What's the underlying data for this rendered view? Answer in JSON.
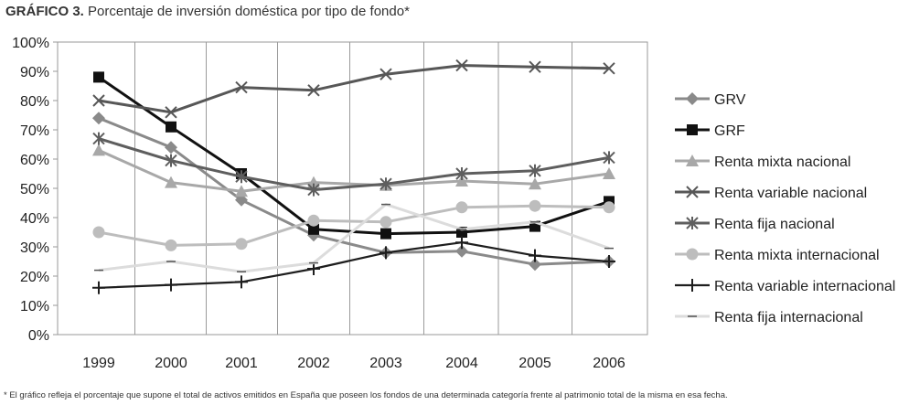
{
  "title_label": "GRÁFICO 3.",
  "title_text": "Porcentaje de inversión doméstica por tipo de fondo*",
  "footnote": "* El gráfico refleja el porcentaje que supone el total de activos emitidos en España que poseen los fondos de una determinada categoría frente al patrimonio total de la misma en esa fecha.",
  "chart_data": {
    "type": "line",
    "x": [
      "1999",
      "2000",
      "2001",
      "2002",
      "2003",
      "2004",
      "2005",
      "2006"
    ],
    "ylim": [
      0,
      100
    ],
    "yticks": [
      "0%",
      "10%",
      "20%",
      "30%",
      "40%",
      "50%",
      "60%",
      "70%",
      "80%",
      "90%",
      "100%"
    ],
    "grid": "vertical",
    "legend_position": "right",
    "series": [
      {
        "name": "GRV",
        "color": "#8a8a8a",
        "marker": "diamond",
        "width": 3,
        "values": [
          74,
          64,
          46,
          34,
          28,
          28.5,
          24,
          25
        ]
      },
      {
        "name": "GRF",
        "color": "#111111",
        "marker": "square",
        "width": 3,
        "values": [
          88,
          71,
          55,
          36,
          34.5,
          35,
          37,
          45.5
        ]
      },
      {
        "name": "Renta mixta nacional",
        "color": "#a8a8a8",
        "marker": "triangle",
        "width": 3,
        "values": [
          63,
          52,
          49,
          52,
          51,
          52.5,
          51.5,
          55
        ]
      },
      {
        "name": "Renta variable nacional",
        "color": "#575757",
        "marker": "x",
        "width": 3,
        "values": [
          80,
          76,
          84.5,
          83.5,
          89,
          92,
          91.5,
          91
        ]
      },
      {
        "name": "Renta fija nacional",
        "color": "#5e5e5e",
        "marker": "asterisk",
        "width": 3,
        "values": [
          67,
          59.5,
          54,
          49.5,
          51.5,
          55,
          56,
          60.5
        ]
      },
      {
        "name": "Renta mixta internacional",
        "color": "#bdbdbd",
        "marker": "circle",
        "width": 3,
        "values": [
          35,
          30.5,
          31,
          39,
          38.5,
          43.5,
          44,
          43.5
        ]
      },
      {
        "name": "Renta variable internacional",
        "color": "#1e1e1e",
        "marker": "plus",
        "width": 2.2,
        "values": [
          16,
          17,
          18,
          22.5,
          28,
          31.5,
          27,
          25
        ]
      },
      {
        "name": "Renta fija internacional",
        "color": "#dcdcdc",
        "marker": "dash",
        "width": 3,
        "values": [
          22,
          25,
          21.5,
          24.5,
          44.5,
          36,
          38.5,
          29.5
        ]
      }
    ]
  }
}
